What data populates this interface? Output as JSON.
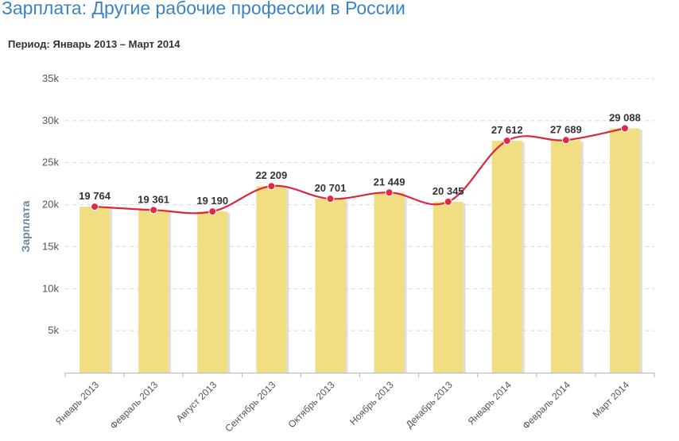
{
  "header": {
    "title": "Зарплата: Другие рабочие профессии в России",
    "period": "Период: Январь 2013 – Март 2014"
  },
  "colors": {
    "bar": "#f2de82",
    "bar_shadow": "#c9c9c9",
    "line": "#d9293f",
    "point": "#e02a45",
    "title": "#3a84c4"
  },
  "chart_data": {
    "type": "bar",
    "categories": [
      "Январь 2013",
      "Февраль 2013",
      "Август 2013",
      "Сентябрь 2013",
      "Октябрь 2013",
      "Ноябрь 2013",
      "Декабрь 2013",
      "Январь 2014",
      "Февраль 2014",
      "Март 2014"
    ],
    "values": [
      19764,
      19361,
      19190,
      22209,
      20701,
      21449,
      20345,
      27612,
      27689,
      29088
    ],
    "value_labels": [
      "19 764",
      "19 361",
      "19 190",
      "22 209",
      "20 701",
      "21 449",
      "20 345",
      "27 612",
      "27 689",
      "29 088"
    ],
    "overlay": "line",
    "ylabel": "Зарплата",
    "xlabel": "",
    "ylim": [
      0,
      35000
    ],
    "yticks": [
      5000,
      10000,
      15000,
      20000,
      25000,
      30000,
      35000
    ],
    "ytick_labels": [
      "5k",
      "10k",
      "15k",
      "20k",
      "25k",
      "30k",
      "35k"
    ],
    "grid": true,
    "legend": "none"
  }
}
